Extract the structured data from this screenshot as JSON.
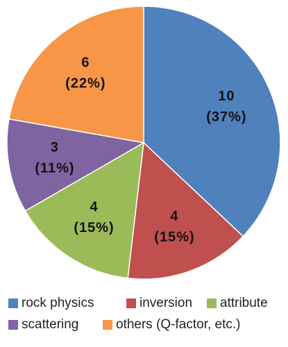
{
  "chart_data": {
    "type": "pie",
    "categories": [
      "rock physics",
      "inversion",
      "attribute",
      "scattering",
      "others (Q-factor, etc.)"
    ],
    "values": [
      10,
      4,
      4,
      3,
      6
    ],
    "percent_labels": [
      "(37%)",
      "(15%)",
      "(15%)",
      "(11%)",
      "(22%)"
    ],
    "colors": [
      "#4f81bd",
      "#c0504d",
      "#9bbb59",
      "#8064a2",
      "#f79646"
    ]
  }
}
